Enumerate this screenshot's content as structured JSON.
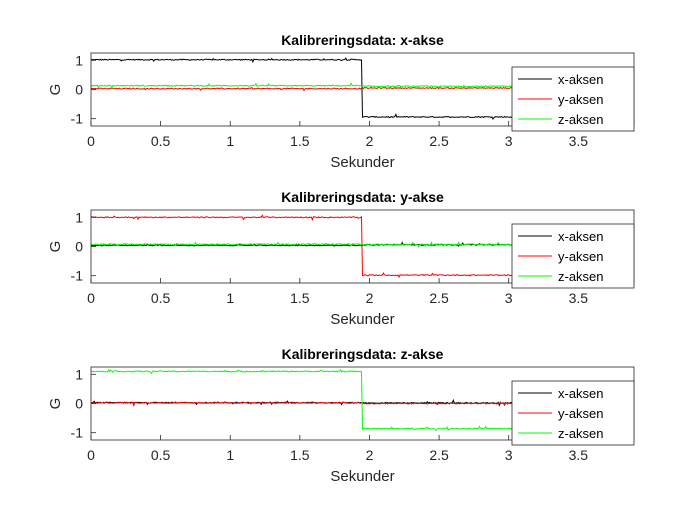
{
  "chart_data": [
    {
      "type": "line",
      "title": "Kalibreringsdata: x-akse",
      "xlabel": "Sekunder",
      "ylabel": "G",
      "xlim": [
        0,
        3.9
      ],
      "ylim": [
        -1.25,
        1.25
      ],
      "xticks": [
        "0",
        "0.5",
        "1",
        "1.5",
        "2",
        "2.5",
        "3",
        "3.5"
      ],
      "yticks": [
        "-1",
        "0",
        "1"
      ],
      "legend_position": "bottom-right",
      "switch_time": 1.95,
      "series": [
        {
          "name": "x-aksen",
          "color": "#000000",
          "before": 1.02,
          "after": -0.94
        },
        {
          "name": "y-aksen",
          "color": "#ff0000",
          "before": 0.03,
          "after": 0.05
        },
        {
          "name": "z-aksen",
          "color": "#00ff00",
          "before": 0.13,
          "after": 0.11
        }
      ]
    },
    {
      "type": "line",
      "title": "Kalibreringsdata: y-akse",
      "xlabel": "Sekunder",
      "ylabel": "G",
      "xlim": [
        0,
        3.9
      ],
      "ylim": [
        -1.25,
        1.25
      ],
      "xticks": [
        "0",
        "0.5",
        "1",
        "1.5",
        "2",
        "2.5",
        "3",
        "3.5"
      ],
      "yticks": [
        "-1",
        "0",
        "1"
      ],
      "legend_position": "bottom-right",
      "switch_time": 1.95,
      "series": [
        {
          "name": "x-aksen",
          "color": "#000000",
          "before": 0.04,
          "after": 0.06
        },
        {
          "name": "y-aksen",
          "color": "#ff0000",
          "before": 1.0,
          "after": -0.98
        },
        {
          "name": "z-aksen",
          "color": "#00ff00",
          "before": 0.08,
          "after": 0.07
        }
      ]
    },
    {
      "type": "line",
      "title": "Kalibreringsdata: z-akse",
      "xlabel": "Sekunder",
      "ylabel": "G",
      "xlim": [
        0,
        3.9
      ],
      "ylim": [
        -1.25,
        1.25
      ],
      "xticks": [
        "0",
        "0.5",
        "1",
        "1.5",
        "2",
        "2.5",
        "3",
        "3.5"
      ],
      "yticks": [
        "-1",
        "0",
        "1"
      ],
      "legend_position": "bottom-right",
      "switch_time": 1.95,
      "series": [
        {
          "name": "x-aksen",
          "color": "#000000",
          "before": 0.03,
          "after": 0.02
        },
        {
          "name": "y-aksen",
          "color": "#ff0000",
          "before": 0.02,
          "after": 0.0
        },
        {
          "name": "z-aksen",
          "color": "#00ff00",
          "before": 1.1,
          "after": -0.86
        }
      ]
    }
  ]
}
